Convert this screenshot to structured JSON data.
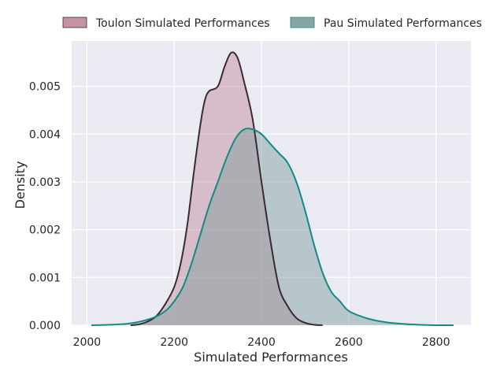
{
  "chart_data": {
    "type": "area",
    "title": "",
    "xlabel": "Simulated Performances",
    "ylabel": "Density",
    "xlim": [
      1965,
      2880
    ],
    "ylim": [
      0,
      0.00595
    ],
    "x_ticks": [
      2000,
      2200,
      2400,
      2600,
      2800
    ],
    "x_tick_labels": [
      "2000",
      "2200",
      "2400",
      "2600",
      "2800"
    ],
    "y_ticks": [
      0,
      0.001,
      0.002,
      0.003,
      0.004,
      0.005
    ],
    "y_tick_labels": [
      "0.000",
      "0.001",
      "0.002",
      "0.003",
      "0.004",
      "0.005"
    ],
    "grid": true,
    "legend_position": "top-center",
    "series": [
      {
        "name": "Toulon Simulated Performances",
        "fill_color": "#c08796",
        "line_color": "#3b2a33",
        "points": [
          [
            2100,
            0.0
          ],
          [
            2120,
            2e-05
          ],
          [
            2140,
            8e-05
          ],
          [
            2160,
            0.0002
          ],
          [
            2180,
            0.00045
          ],
          [
            2200,
            0.0008
          ],
          [
            2215,
            0.0013
          ],
          [
            2230,
            0.0021
          ],
          [
            2245,
            0.0032
          ],
          [
            2260,
            0.0042
          ],
          [
            2270,
            0.0047
          ],
          [
            2280,
            0.0049
          ],
          [
            2300,
            0.005
          ],
          [
            2315,
            0.0054
          ],
          [
            2330,
            0.0057
          ],
          [
            2345,
            0.0056
          ],
          [
            2360,
            0.0051
          ],
          [
            2380,
            0.0043
          ],
          [
            2400,
            0.003
          ],
          [
            2420,
            0.0018
          ],
          [
            2440,
            0.0008
          ],
          [
            2460,
            0.0004
          ],
          [
            2480,
            0.00015
          ],
          [
            2500,
            5e-05
          ],
          [
            2520,
            1e-05
          ],
          [
            2540,
            0.0
          ]
        ]
      },
      {
        "name": "Pau Simulated Performances",
        "fill_color": "#7a9b98",
        "line_color": "#128a86",
        "points": [
          [
            2010,
            0.0
          ],
          [
            2050,
            1e-05
          ],
          [
            2100,
            4e-05
          ],
          [
            2150,
            0.00015
          ],
          [
            2180,
            0.0003
          ],
          [
            2200,
            0.0005
          ],
          [
            2220,
            0.0008
          ],
          [
            2240,
            0.0013
          ],
          [
            2260,
            0.0019
          ],
          [
            2280,
            0.0025
          ],
          [
            2300,
            0.003
          ],
          [
            2320,
            0.0035
          ],
          [
            2340,
            0.0039
          ],
          [
            2360,
            0.0041
          ],
          [
            2380,
            0.0041
          ],
          [
            2400,
            0.004
          ],
          [
            2420,
            0.0038
          ],
          [
            2440,
            0.0036
          ],
          [
            2460,
            0.0034
          ],
          [
            2480,
            0.003
          ],
          [
            2500,
            0.0024
          ],
          [
            2520,
            0.0017
          ],
          [
            2540,
            0.0011
          ],
          [
            2560,
            0.0007
          ],
          [
            2580,
            0.0005
          ],
          [
            2600,
            0.0003
          ],
          [
            2640,
            0.00015
          ],
          [
            2680,
            7e-05
          ],
          [
            2720,
            3e-05
          ],
          [
            2760,
            1e-05
          ],
          [
            2800,
            0.0
          ],
          [
            2840,
            0.0
          ]
        ]
      }
    ]
  }
}
